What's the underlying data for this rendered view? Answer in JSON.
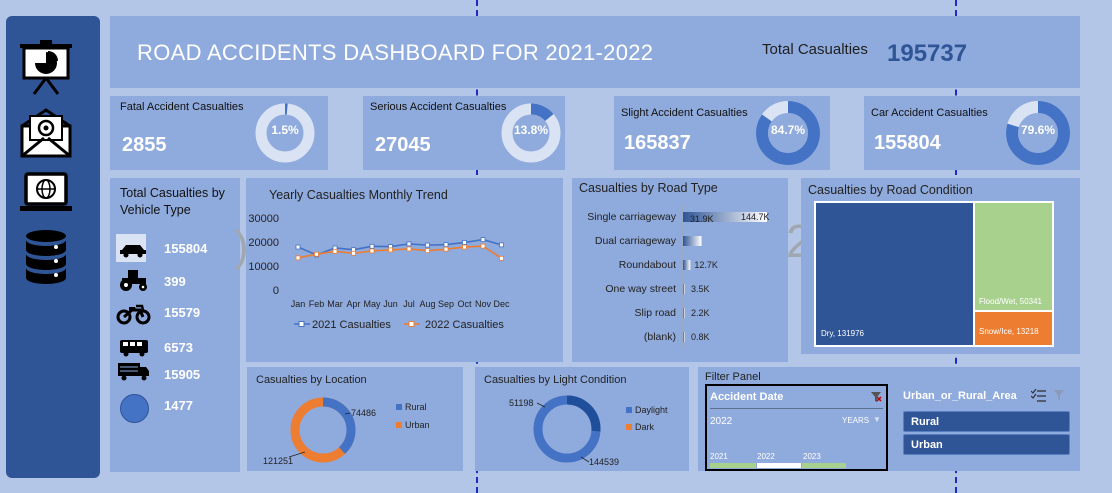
{
  "header": {
    "title": "ROAD ACCIDENTS DASHBOARD FOR 2021-2022",
    "total_label": "Total Casualties",
    "total_value": "195737"
  },
  "sidebar": {
    "icons": [
      "presentation-icon",
      "mail-icon",
      "laptop-globe-icon",
      "database-icon"
    ]
  },
  "kpis": [
    {
      "label": "Fatal Accident Casualties",
      "value": "2855",
      "pct_label": "1.5%",
      "pct": 1.5
    },
    {
      "label": "Serious Accident Casualties",
      "value": "27045",
      "pct_label": "13.8%",
      "pct": 13.8
    },
    {
      "label": "Slight Accident Casualties",
      "value": "165837",
      "pct_label": "84.7%",
      "pct": 84.7
    },
    {
      "label": "Car Accident Casualties",
      "value": "155804",
      "pct_label": "79.6%",
      "pct": 79.6
    }
  ],
  "vehicle": {
    "title": "Total Casualties by Vehicle Type",
    "rows": [
      {
        "icon": "car-icon",
        "value": "155804"
      },
      {
        "icon": "tractor-icon",
        "value": "399"
      },
      {
        "icon": "motorcycle-icon",
        "value": "15579"
      },
      {
        "icon": "bus-icon",
        "value": "6573"
      },
      {
        "icon": "truck-icon",
        "value": "15905"
      },
      {
        "icon": "circle-icon",
        "value": "1477"
      }
    ]
  },
  "monthly": {
    "title": "Yearly Casualties Monthly Trend",
    "y_ticks": [
      "30000",
      "20000",
      "10000",
      "0"
    ],
    "legend_2021": "2021 Casualties",
    "legend_2022": "2022 Casualties"
  },
  "road_type": {
    "title": "Casualties by Road Type",
    "rows": [
      {
        "label": "Single carriageway",
        "value_label": "144.7K",
        "value": 144.7
      },
      {
        "label": "Dual carriageway",
        "value_label": "31.9K",
        "value": 31.9
      },
      {
        "label": "Roundabout",
        "value_label": "12.7K",
        "value": 12.7
      },
      {
        "label": "One way street",
        "value_label": "3.5K",
        "value": 3.5
      },
      {
        "label": "Slip road",
        "value_label": "2.2K",
        "value": 2.2
      },
      {
        "label": "(blank)",
        "value_label": "0.8K",
        "value": 0.8
      }
    ]
  },
  "road_condition": {
    "title": "Casualties by Road Condition",
    "dry_label": "Dry, 131976",
    "flood_label": "Flood/Wet, 50341",
    "snow_label": "Snow/Ice, 13218",
    "colors": {
      "dry": "#2f5597",
      "flood": "#a9d18e",
      "snow": "#ed7d31"
    }
  },
  "location": {
    "title": "Casualties by Location",
    "rural": "74486",
    "urban": "121251",
    "legend": [
      "Rural",
      "Urban"
    ]
  },
  "light": {
    "title": "Casualties by Light Condition",
    "daylight": "144539",
    "dark": "51198",
    "legend": [
      "Daylight",
      "Dark"
    ]
  },
  "filter": {
    "title": "Filter Panel",
    "date_header": "Accident Date",
    "selected_year": "2022",
    "unit": "YEARS",
    "years": [
      "2021",
      "2022",
      "2023"
    ],
    "area_header": "Urban_or_Rural_Area",
    "area_items": [
      "Rural",
      "Urban"
    ]
  },
  "chart_data": [
    {
      "type": "line",
      "title": "Yearly Casualties Monthly Trend",
      "categories": [
        "Jan",
        "Feb",
        "Mar",
        "Apr",
        "May",
        "Jun",
        "Jul",
        "Aug",
        "Sep",
        "Oct",
        "Nov",
        "Dec"
      ],
      "ylim": [
        0,
        30000
      ],
      "series": [
        {
          "name": "2021 Casualties",
          "color": "#4472c4",
          "values": [
            17900,
            14600,
            17500,
            16800,
            18200,
            18100,
            19200,
            18700,
            18900,
            19800,
            21000,
            18800
          ]
        },
        {
          "name": "2022 Casualties",
          "color": "#ed7d31",
          "values": [
            13400,
            14900,
            16100,
            15300,
            16300,
            16700,
            17100,
            16400,
            17000,
            17900,
            18300,
            13200
          ]
        }
      ]
    },
    {
      "type": "bar",
      "title": "Casualties by Road Type",
      "categories": [
        "Single carriageway",
        "Dual carriageway",
        "Roundabout",
        "One way street",
        "Slip road",
        "(blank)"
      ],
      "values": [
        144.7,
        31.9,
        12.7,
        3.5,
        2.2,
        0.8
      ]
    },
    {
      "type": "pie",
      "title": "Casualties by Location",
      "categories": [
        "Rural",
        "Urban"
      ],
      "values": [
        74486,
        121251
      ]
    },
    {
      "type": "pie",
      "title": "Casualties by Light Condition",
      "categories": [
        "Daylight",
        "Dark"
      ],
      "values": [
        144539,
        51198
      ]
    }
  ]
}
